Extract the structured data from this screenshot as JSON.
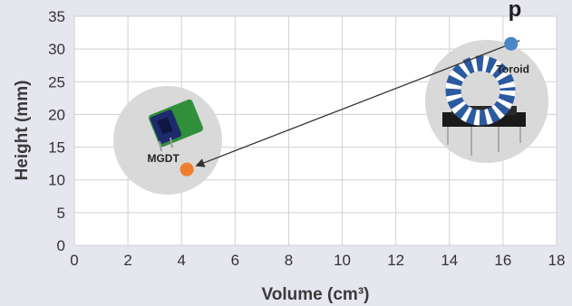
{
  "chart_data": {
    "type": "scatter",
    "title": "p",
    "xlabel": "Volume (cm³)",
    "ylabel": "Height (mm)",
    "xlim": [
      0,
      18
    ],
    "ylim": [
      0,
      35
    ],
    "x_ticks": [
      0,
      2,
      4,
      6,
      8,
      10,
      12,
      14,
      16,
      18
    ],
    "y_ticks": [
      0,
      5,
      10,
      15,
      20,
      25,
      30,
      35
    ],
    "grid": true,
    "legend": "none",
    "points": [
      {
        "label": "Toroid",
        "x": 16.3,
        "y": 30.8,
        "color": "#4a86c8"
      },
      {
        "label": "MGDT",
        "x": 4.2,
        "y": 11.6,
        "color": "#f07f2d"
      }
    ],
    "arrow": {
      "from": "Toroid",
      "to": "MGDT"
    }
  },
  "colors": {
    "background": "#e6e6ef",
    "plot_area": "#ffffff",
    "grid": "#cfcfd8",
    "arrow": "#333333",
    "halo": "#d9d9d9"
  },
  "icons": [
    "toroid-inductor-photo",
    "mgdt-component-photo"
  ]
}
